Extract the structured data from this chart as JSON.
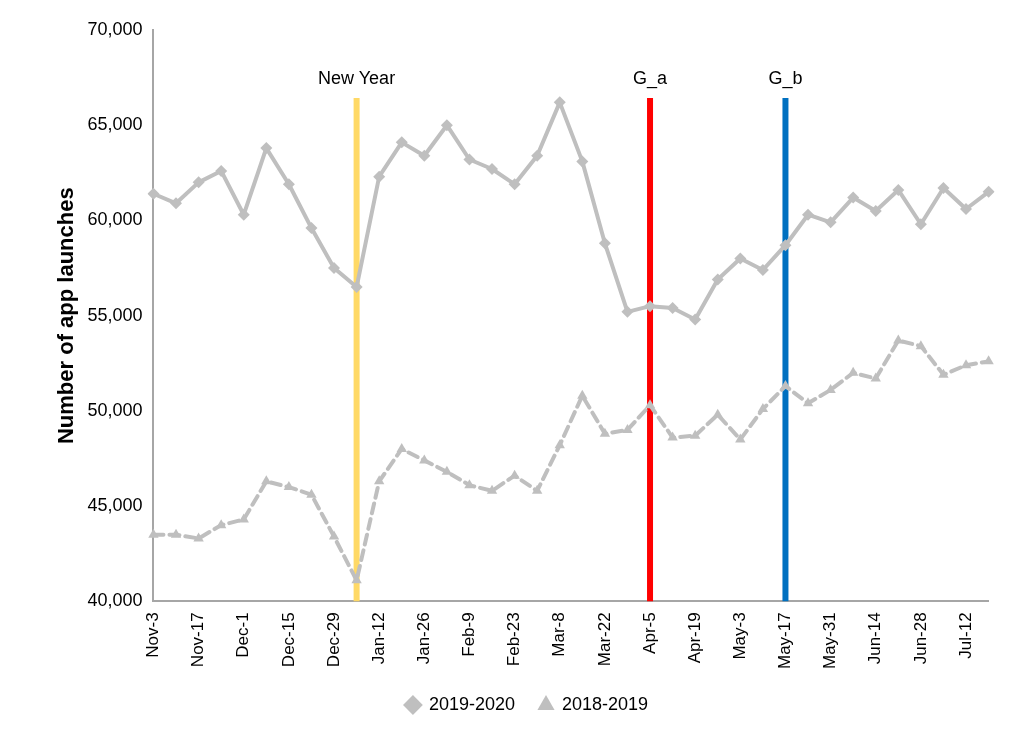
{
  "chart_data": {
    "type": "line",
    "ylabel": "Number of app launches",
    "categories": [
      "Nov-3",
      null,
      "Nov-17",
      null,
      "Dec-1",
      null,
      "Dec-15",
      null,
      "Dec-29",
      null,
      "Jan-12",
      null,
      "Jan-26",
      null,
      "Feb-9",
      null,
      "Feb-23",
      null,
      "Mar-8",
      null,
      "Mar-22",
      null,
      "Apr-5",
      null,
      "Apr-19",
      null,
      "May-3",
      null,
      "May-17",
      null,
      "May-31",
      null,
      "Jun-14",
      null,
      "Jun-28",
      null,
      "Jul-12",
      null
    ],
    "series": [
      {
        "name": "2019-2020",
        "color": "#bfbfbf",
        "marker": "diamond",
        "line_style": "solid",
        "values": [
          61400,
          60900,
          62000,
          62600,
          60300,
          63800,
          61900,
          59600,
          57500,
          56500,
          62300,
          64100,
          63400,
          65000,
          63200,
          62700,
          61900,
          63400,
          66200,
          63100,
          58800,
          55200,
          55500,
          55400,
          54800,
          56900,
          58000,
          57400,
          58700,
          60300,
          59900,
          61200,
          60500,
          61600,
          59800,
          61700,
          60600,
          61500
        ]
      },
      {
        "name": "2018-2019",
        "color": "#bfbfbf",
        "marker": "triangle",
        "line_style": "dashed",
        "values": [
          43500,
          43500,
          43300,
          44000,
          44300,
          46300,
          46000,
          45600,
          43400,
          41100,
          46300,
          48000,
          47400,
          46800,
          46100,
          45800,
          46600,
          45800,
          48200,
          50800,
          48800,
          49000,
          50300,
          48600,
          48700,
          49800,
          48500,
          50100,
          51300,
          50400,
          51100,
          52000,
          51700,
          53700,
          53400,
          51900,
          52400,
          52600
        ]
      }
    ],
    "ylim": [
      40000,
      70000
    ],
    "yticks": [
      {
        "value": 40000,
        "label": "40,000"
      },
      {
        "value": 45000,
        "label": "45,000"
      },
      {
        "value": 50000,
        "label": "50,000"
      },
      {
        "value": 55000,
        "label": "55,000"
      },
      {
        "value": 60000,
        "label": "60,000"
      },
      {
        "value": 65000,
        "label": "65,000"
      },
      {
        "value": 70000,
        "label": "70,000"
      }
    ],
    "ref_lines": [
      {
        "axis": "x",
        "value": "Apr-5",
        "label": "G_a",
        "color": "#ff0000"
      },
      {
        "axis": "x",
        "value": "May-17",
        "label": "G_b",
        "color": "#0070c0"
      }
    ],
    "annotations": [
      "New Year"
    ],
    "grid": false,
    "legend": "bottom"
  }
}
